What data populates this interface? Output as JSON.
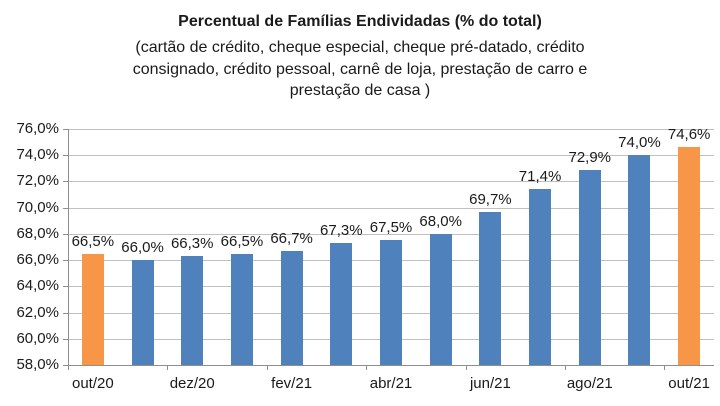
{
  "title": "Percentual de Famílias Endividadas (% do total)",
  "subtitle_lines": [
    "(cartão de crédito, cheque especial, cheque pré-datado, crédito",
    "consignado, crédito pessoal, carnê de loja, prestação de carro e",
    "prestação de casa )"
  ],
  "colors": {
    "bar_default": "#4F81BD",
    "bar_highlight": "#F79646",
    "gridline": "#C0C0C0",
    "axis": "#8E8E8E",
    "text": "#1A1A1A"
  },
  "chart_data": {
    "type": "bar",
    "title": "Percentual de Famílias Endividadas (% do total)",
    "n_bars": 13,
    "values": [
      66.5,
      66.0,
      66.3,
      66.5,
      66.7,
      67.3,
      67.5,
      68.0,
      69.7,
      71.4,
      72.9,
      74.0,
      74.6
    ],
    "labels": [
      "66,5%",
      "66,0%",
      "66,3%",
      "66,5%",
      "66,7%",
      "67,3%",
      "67,5%",
      "68,0%",
      "69,7%",
      "71,4%",
      "72,9%",
      "74,0%",
      "74,6%"
    ],
    "highlighted_indices": [
      0,
      12
    ],
    "x_tick_labels": [
      "out/20",
      "dez/20",
      "fev/21",
      "abr/21",
      "jun/21",
      "ago/21",
      "out/21"
    ],
    "x_tick_positions": [
      0,
      2,
      4,
      6,
      8,
      10,
      12
    ],
    "y_ticks": [
      "76,0%",
      "74,0%",
      "72,0%",
      "70,0%",
      "68,0%",
      "66,0%",
      "64,0%",
      "62,0%",
      "60,0%",
      "58,0%"
    ],
    "ylim": [
      58,
      76
    ],
    "y_step": 2,
    "grid": "horizontal",
    "legend": "none"
  }
}
